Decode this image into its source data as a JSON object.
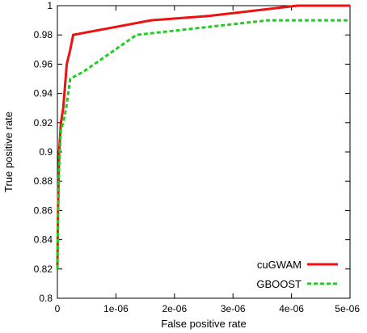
{
  "chart_data": {
    "type": "line",
    "title": "",
    "xlabel": "False positive rate",
    "ylabel": "True positive rate",
    "xlim": [
      0,
      5e-06
    ],
    "ylim": [
      0.8,
      1.0
    ],
    "x_ticks": [
      0,
      1e-06,
      2e-06,
      3e-06,
      4e-06,
      5e-06
    ],
    "x_tick_labels": [
      "0",
      "1e-06",
      "2e-06",
      "3e-06",
      "4e-06",
      "5e-06"
    ],
    "y_ticks": [
      0.8,
      0.82,
      0.84,
      0.86,
      0.88,
      0.9,
      0.92,
      0.94,
      0.96,
      0.98,
      1.0
    ],
    "y_tick_labels": [
      "0.8",
      "0.82",
      "0.84",
      "0.86",
      "0.88",
      "0.9",
      "0.92",
      "0.94",
      "0.96",
      "0.98",
      "1"
    ],
    "grid": false,
    "legend_position": "bottom-right",
    "series": [
      {
        "name": "cuGWAM",
        "color": "#ee1111",
        "dash": "solid",
        "x": [
          0,
          1e-08,
          3e-08,
          6e-08,
          1e-07,
          1.6e-07,
          2.2e-07,
          2.7e-07,
          1.6e-06,
          2.6e-06,
          4.1e-06,
          5e-06
        ],
        "y": [
          0.82,
          0.86,
          0.9,
          0.92,
          0.93,
          0.96,
          0.97,
          0.98,
          0.99,
          0.993,
          1.0,
          1.0
        ]
      },
      {
        "name": "GBOOST",
        "color": "#22cc22",
        "dash": "dashed",
        "x": [
          0,
          1e-08,
          3e-08,
          6e-08,
          1e-07,
          1.5e-07,
          2.2e-07,
          4.5e-07,
          1.35e-06,
          3.6e-06,
          5e-06
        ],
        "y": [
          0.82,
          0.85,
          0.89,
          0.915,
          0.92,
          0.93,
          0.95,
          0.955,
          0.98,
          0.99,
          0.99
        ]
      }
    ]
  }
}
